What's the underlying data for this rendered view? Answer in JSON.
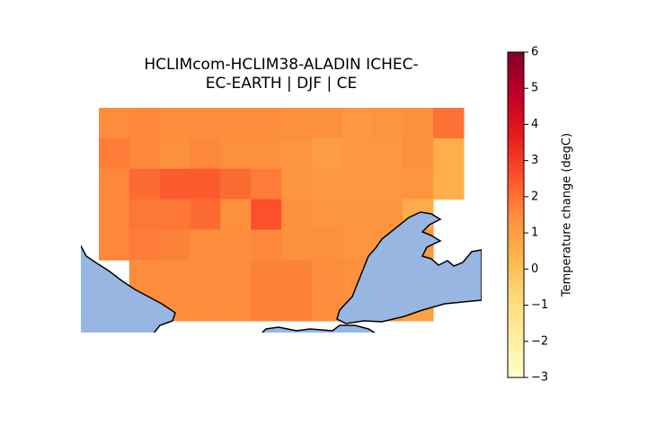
{
  "chart_data": {
    "type": "heatmap",
    "title": [
      "HCLIMcom-HCLIM38-ALADIN ICHEC-",
      "EC-EARTH | DJF | CE"
    ],
    "colorbar_label": "Temperature change (degC)",
    "colormap": "YlOrRd",
    "clim": [
      -3,
      6
    ],
    "cticks": [
      {
        "value": -3,
        "label": "−3"
      },
      {
        "value": -2,
        "label": "−2"
      },
      {
        "value": -1,
        "label": "−1"
      },
      0,
      1,
      2,
      3,
      4,
      5,
      6
    ],
    "values": [
      [
        1.5,
        1.6,
        1.5,
        1.5,
        1.5,
        1.5,
        1.4,
        1.4,
        1.2,
        1.3,
        1.4,
        2.0
      ],
      [
        1.8,
        1.6,
        1.4,
        1.6,
        1.4,
        1.4,
        1.3,
        1.0,
        1.2,
        1.2,
        1.4,
        0.5
      ],
      [
        1.6,
        2.1,
        2.4,
        2.4,
        2.1,
        1.8,
        1.3,
        1.2,
        1.2,
        1.2,
        1.3,
        0.5
      ],
      [
        1.6,
        1.9,
        1.9,
        2.1,
        1.4,
        2.6,
        1.4,
        1.3,
        1.3,
        1.3,
        0.6,
        null
      ],
      [
        1.6,
        1.8,
        1.7,
        1.5,
        1.5,
        1.6,
        1.4,
        1.4,
        1.3,
        1.3,
        1.2,
        null
      ],
      [
        null,
        1.5,
        1.5,
        1.5,
        1.5,
        1.7,
        1.7,
        1.5,
        1.4,
        1.3,
        1.2,
        null
      ],
      [
        null,
        1.5,
        1.5,
        1.5,
        1.5,
        1.7,
        1.7,
        1.5,
        1.4,
        1.3,
        0.9,
        null
      ]
    ]
  }
}
